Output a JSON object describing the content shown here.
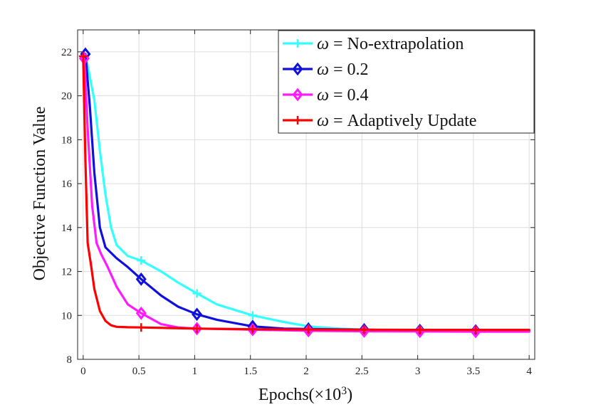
{
  "chart_data": {
    "type": "line",
    "title": "",
    "xlabel": "Epochs(×10",
    "xlabel_exponent": "3",
    "xlabel_suffix": ")",
    "ylabel": "Objective Function Value",
    "xlim": [
      -0.05,
      4.05
    ],
    "ylim": [
      8,
      23
    ],
    "x_ticks": [
      0,
      0.5,
      1,
      1.5,
      2,
      2.5,
      3,
      3.5,
      4
    ],
    "x_tick_labels": [
      "0",
      "0.5",
      "1",
      "1.5",
      "2",
      "2.5",
      "3",
      "3.5",
      "4"
    ],
    "y_ticks": [
      8,
      10,
      12,
      14,
      16,
      18,
      20,
      22
    ],
    "y_tick_labels": [
      "8",
      "10",
      "12",
      "14",
      "16",
      "18",
      "20",
      "22"
    ],
    "grid": true,
    "legend_position": "top-right",
    "series": [
      {
        "name": "No-extrapolation",
        "legend_prefix": "ω",
        "legend_label": " = No-extrapolation",
        "color": "#33ffff",
        "marker": "plus",
        "x": [
          0.02,
          0.1,
          0.15,
          0.2,
          0.25,
          0.3,
          0.4,
          0.52,
          0.7,
          0.85,
          1.02,
          1.2,
          1.52,
          1.8,
          2.02,
          2.3,
          2.52,
          3.0,
          3.52,
          4.0
        ],
        "values": [
          21.9,
          19.8,
          17.5,
          15.5,
          14.0,
          13.2,
          12.7,
          12.5,
          12.0,
          11.5,
          11.0,
          10.5,
          10.0,
          9.7,
          9.5,
          9.4,
          9.35,
          9.3,
          9.3,
          9.3
        ],
        "markers_x": [
          0.52,
          1.02,
          1.52,
          2.02,
          2.52,
          3.02,
          3.52
        ],
        "markers_y": [
          12.5,
          11.0,
          10.0,
          9.5,
          9.35,
          9.3,
          9.3
        ]
      },
      {
        "name": "0.2",
        "legend_prefix": "ω",
        "legend_label": " = 0.2",
        "color": "#1010dd",
        "marker": "diamond",
        "x": [
          0.02,
          0.06,
          0.1,
          0.15,
          0.2,
          0.3,
          0.4,
          0.52,
          0.7,
          0.85,
          1.02,
          1.2,
          1.52,
          1.8,
          2.02,
          2.52,
          3.02,
          3.52,
          4.0
        ],
        "values": [
          21.9,
          19.5,
          16.5,
          14.0,
          13.1,
          12.6,
          12.2,
          11.65,
          10.9,
          10.4,
          10.05,
          9.8,
          9.5,
          9.4,
          9.38,
          9.35,
          9.32,
          9.3,
          9.3
        ],
        "markers_x": [
          0.02,
          0.52,
          1.02,
          1.52,
          2.02,
          2.52,
          3.02,
          3.52
        ],
        "markers_y": [
          21.9,
          11.65,
          10.05,
          9.5,
          9.38,
          9.35,
          9.32,
          9.3
        ]
      },
      {
        "name": "0.4",
        "legend_prefix": "ω",
        "legend_label": " = 0.4",
        "color": "#ff1aff",
        "marker": "diamond",
        "x": [
          0.01,
          0.04,
          0.08,
          0.12,
          0.16,
          0.22,
          0.3,
          0.4,
          0.52,
          0.7,
          0.85,
          1.02,
          1.52,
          2.02,
          2.52,
          3.02,
          3.52,
          4.0
        ],
        "values": [
          21.7,
          18.5,
          15.0,
          13.3,
          12.8,
          12.2,
          11.3,
          10.5,
          10.1,
          9.6,
          9.45,
          9.4,
          9.35,
          9.3,
          9.28,
          9.27,
          9.26,
          9.26
        ],
        "markers_x": [
          0.01,
          0.52,
          1.02,
          1.52,
          2.02,
          2.52,
          3.02,
          3.52
        ],
        "markers_y": [
          21.7,
          10.1,
          9.4,
          9.35,
          9.3,
          9.28,
          9.27,
          9.26
        ]
      },
      {
        "name": "Adaptively Update",
        "legend_prefix": "ω",
        "legend_label": " = Adaptively Update",
        "color": "#ff0000",
        "marker": "plus",
        "x": [
          0.0,
          0.02,
          0.04,
          0.07,
          0.1,
          0.15,
          0.2,
          0.25,
          0.3,
          0.4,
          0.52,
          1.02,
          1.52,
          2.02,
          2.52,
          3.02,
          3.52,
          4.0
        ],
        "values": [
          21.8,
          17.0,
          13.3,
          12.3,
          11.2,
          10.2,
          9.75,
          9.55,
          9.48,
          9.46,
          9.45,
          9.4,
          9.37,
          9.36,
          9.35,
          9.34,
          9.34,
          9.34
        ],
        "markers_x": [
          0.0,
          0.52,
          1.02,
          1.52,
          2.02,
          2.52,
          3.02,
          3.52
        ],
        "markers_y": [
          21.8,
          9.45,
          9.4,
          9.37,
          9.36,
          9.35,
          9.34,
          9.34
        ]
      }
    ]
  }
}
